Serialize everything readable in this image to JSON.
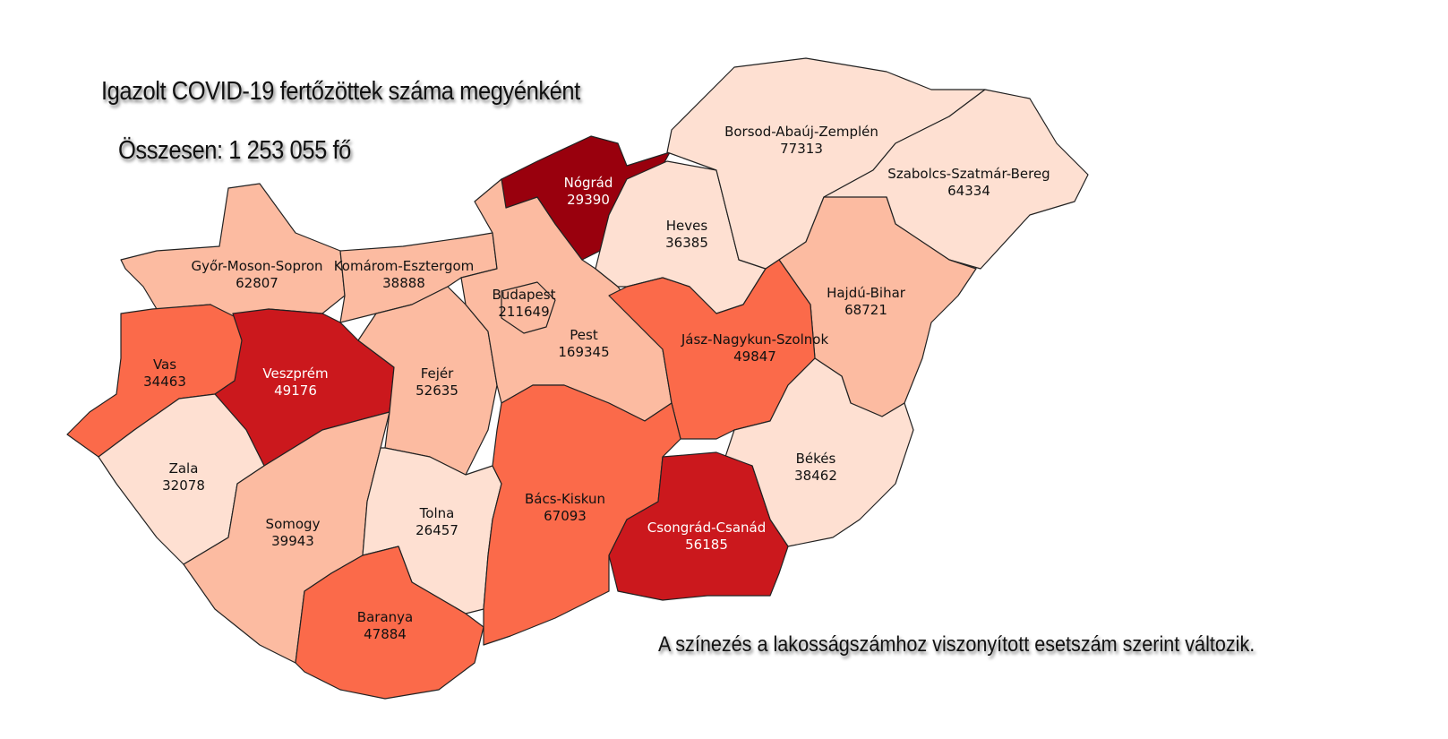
{
  "title": "Igazolt COVID-19 fertőzöttek száma megyénként",
  "total": "Összesen: 1 253 055 fő",
  "note": "A színezés a lakosságszámhoz viszonyított esetszám szerint változik.",
  "colors": {
    "level1": "#fee0d2",
    "level2": "#fcbba1",
    "level3": "#fb6a4a",
    "level4": "#cb181d",
    "level5": "#99000d",
    "border": "#222222"
  },
  "counties": [
    {
      "name": "Győr-Moson-Sopron",
      "cases": "62807",
      "level": "level2"
    },
    {
      "name": "Komárom-Esztergom",
      "cases": "38888",
      "level": "level2"
    },
    {
      "name": "Vas",
      "cases": "34463",
      "level": "level3"
    },
    {
      "name": "Veszprém",
      "cases": "49176",
      "level": "level4"
    },
    {
      "name": "Zala",
      "cases": "32078",
      "level": "level1"
    },
    {
      "name": "Somogy",
      "cases": "39943",
      "level": "level2"
    },
    {
      "name": "Fejér",
      "cases": "52635",
      "level": "level2"
    },
    {
      "name": "Tolna",
      "cases": "26457",
      "level": "level1"
    },
    {
      "name": "Baranya",
      "cases": "47884",
      "level": "level3"
    },
    {
      "name": "Pest",
      "cases": "169345",
      "level": "level2"
    },
    {
      "name": "Budapest",
      "cases": "211649",
      "level": "level2"
    },
    {
      "name": "Nógrád",
      "cases": "29390",
      "level": "level5"
    },
    {
      "name": "Heves",
      "cases": "36385",
      "level": "level1"
    },
    {
      "name": "Borsod-Abaúj-Zemplén",
      "cases": "77313",
      "level": "level1"
    },
    {
      "name": "Szabolcs-Szatmár-Bereg",
      "cases": "64334",
      "level": "level1"
    },
    {
      "name": "Hajdú-Bihar",
      "cases": "68721",
      "level": "level2"
    },
    {
      "name": "Jász-Nagykun-Szolnok",
      "cases": "49847",
      "level": "level3"
    },
    {
      "name": "Békés",
      "cases": "38462",
      "level": "level1"
    },
    {
      "name": "Bács-Kiskun",
      "cases": "67093",
      "level": "level3"
    },
    {
      "name": "Csongrád-Csanád",
      "cases": "56185",
      "level": "level4"
    }
  ]
}
